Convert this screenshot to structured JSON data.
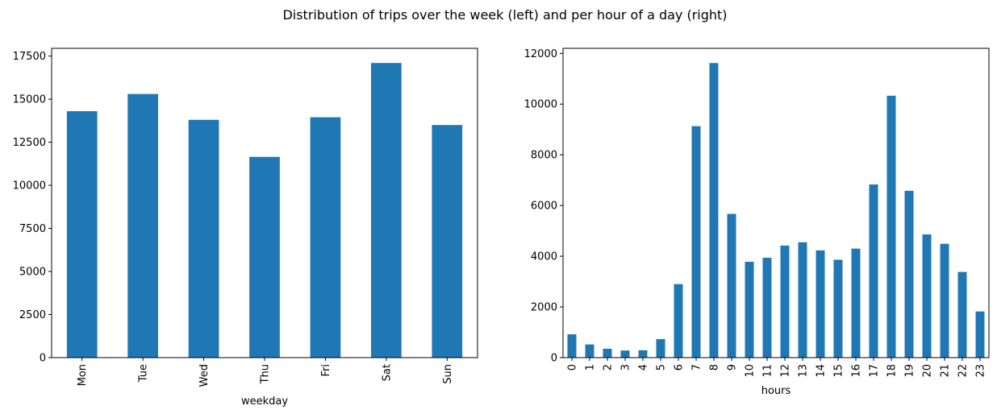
{
  "figure": {
    "title": "Distribution of trips over the week (left) and per hour of a day (right)"
  },
  "chart_data": [
    {
      "type": "bar",
      "xlabel": "weekday",
      "ylabel": "",
      "categories": [
        "Mon",
        "Tue",
        "Wed",
        "Thu",
        "Fri",
        "Sat",
        "Sun"
      ],
      "values": [
        14300,
        15300,
        13800,
        11650,
        13950,
        17100,
        13500
      ],
      "ylim": [
        0,
        17950
      ],
      "yticks": [
        0,
        2500,
        5000,
        7500,
        10000,
        12500,
        15000,
        17500
      ],
      "color": "#1f77b4",
      "grid": false,
      "legend": "none"
    },
    {
      "type": "bar",
      "xlabel": "hours",
      "ylabel": "",
      "categories": [
        "0",
        "1",
        "2",
        "3",
        "4",
        "5",
        "6",
        "7",
        "8",
        "9",
        "10",
        "11",
        "12",
        "13",
        "14",
        "15",
        "16",
        "17",
        "18",
        "19",
        "20",
        "21",
        "22",
        "23"
      ],
      "values": [
        920,
        520,
        350,
        280,
        290,
        730,
        2900,
        9130,
        11620,
        5670,
        3780,
        3940,
        4420,
        4550,
        4230,
        3860,
        4300,
        6830,
        10330,
        6580,
        4860,
        4490,
        3380,
        1820
      ],
      "ylim": [
        0,
        12200
      ],
      "yticks": [
        0,
        2000,
        4000,
        6000,
        8000,
        10000,
        12000
      ],
      "color": "#1f77b4",
      "grid": false,
      "legend": "none"
    }
  ]
}
